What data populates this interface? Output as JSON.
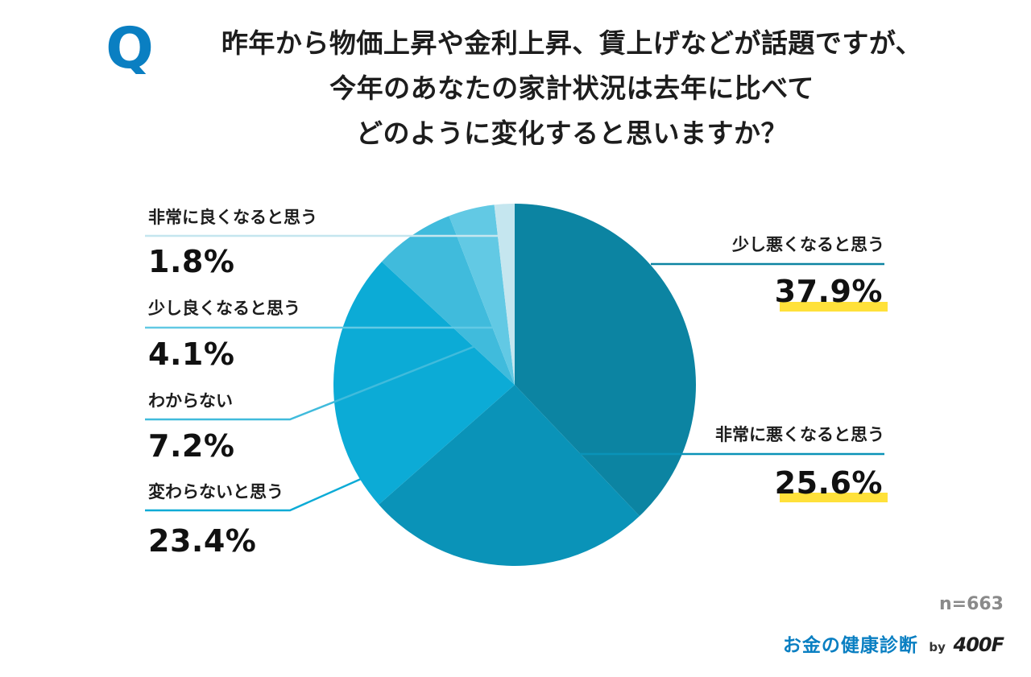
{
  "question": {
    "mark": "Q",
    "lines": [
      "昨年から物価上昇や金利上昇、賃上げなどが話題ですが、",
      "今年のあなたの家計状況は去年に比べて",
      "どのように変化すると思いますか？"
    ]
  },
  "footer": {
    "sample": "n=663",
    "brand": "お金の健康診断",
    "by": "by",
    "logo": "400F"
  },
  "chart_data": {
    "type": "pie",
    "start_angle_deg": 0,
    "direction": "clockwise",
    "slices": [
      {
        "label": "少し悪くなると思う",
        "value": 37.9,
        "display": "37.9%",
        "color": "#0c84a2",
        "highlight": true
      },
      {
        "label": "非常に悪くなると思う",
        "value": 25.6,
        "display": "25.6%",
        "color": "#0a93b8",
        "highlight": true
      },
      {
        "label": "変わらないと思う",
        "value": 23.4,
        "display": "23.4%",
        "color": "#0cabd6",
        "highlight": false
      },
      {
        "label": "わからない",
        "value": 7.2,
        "display": "7.2%",
        "color": "#40bbdc",
        "highlight": false
      },
      {
        "label": "少し良くなると思う",
        "value": 4.1,
        "display": "4.1%",
        "color": "#62c9e4",
        "highlight": false
      },
      {
        "label": "非常に良くなると思う",
        "value": 1.8,
        "display": "1.8%",
        "color": "#c5e6ef",
        "highlight": false
      }
    ],
    "highlight_color": "#ffe13a",
    "q_color": "#0a7fc2"
  }
}
